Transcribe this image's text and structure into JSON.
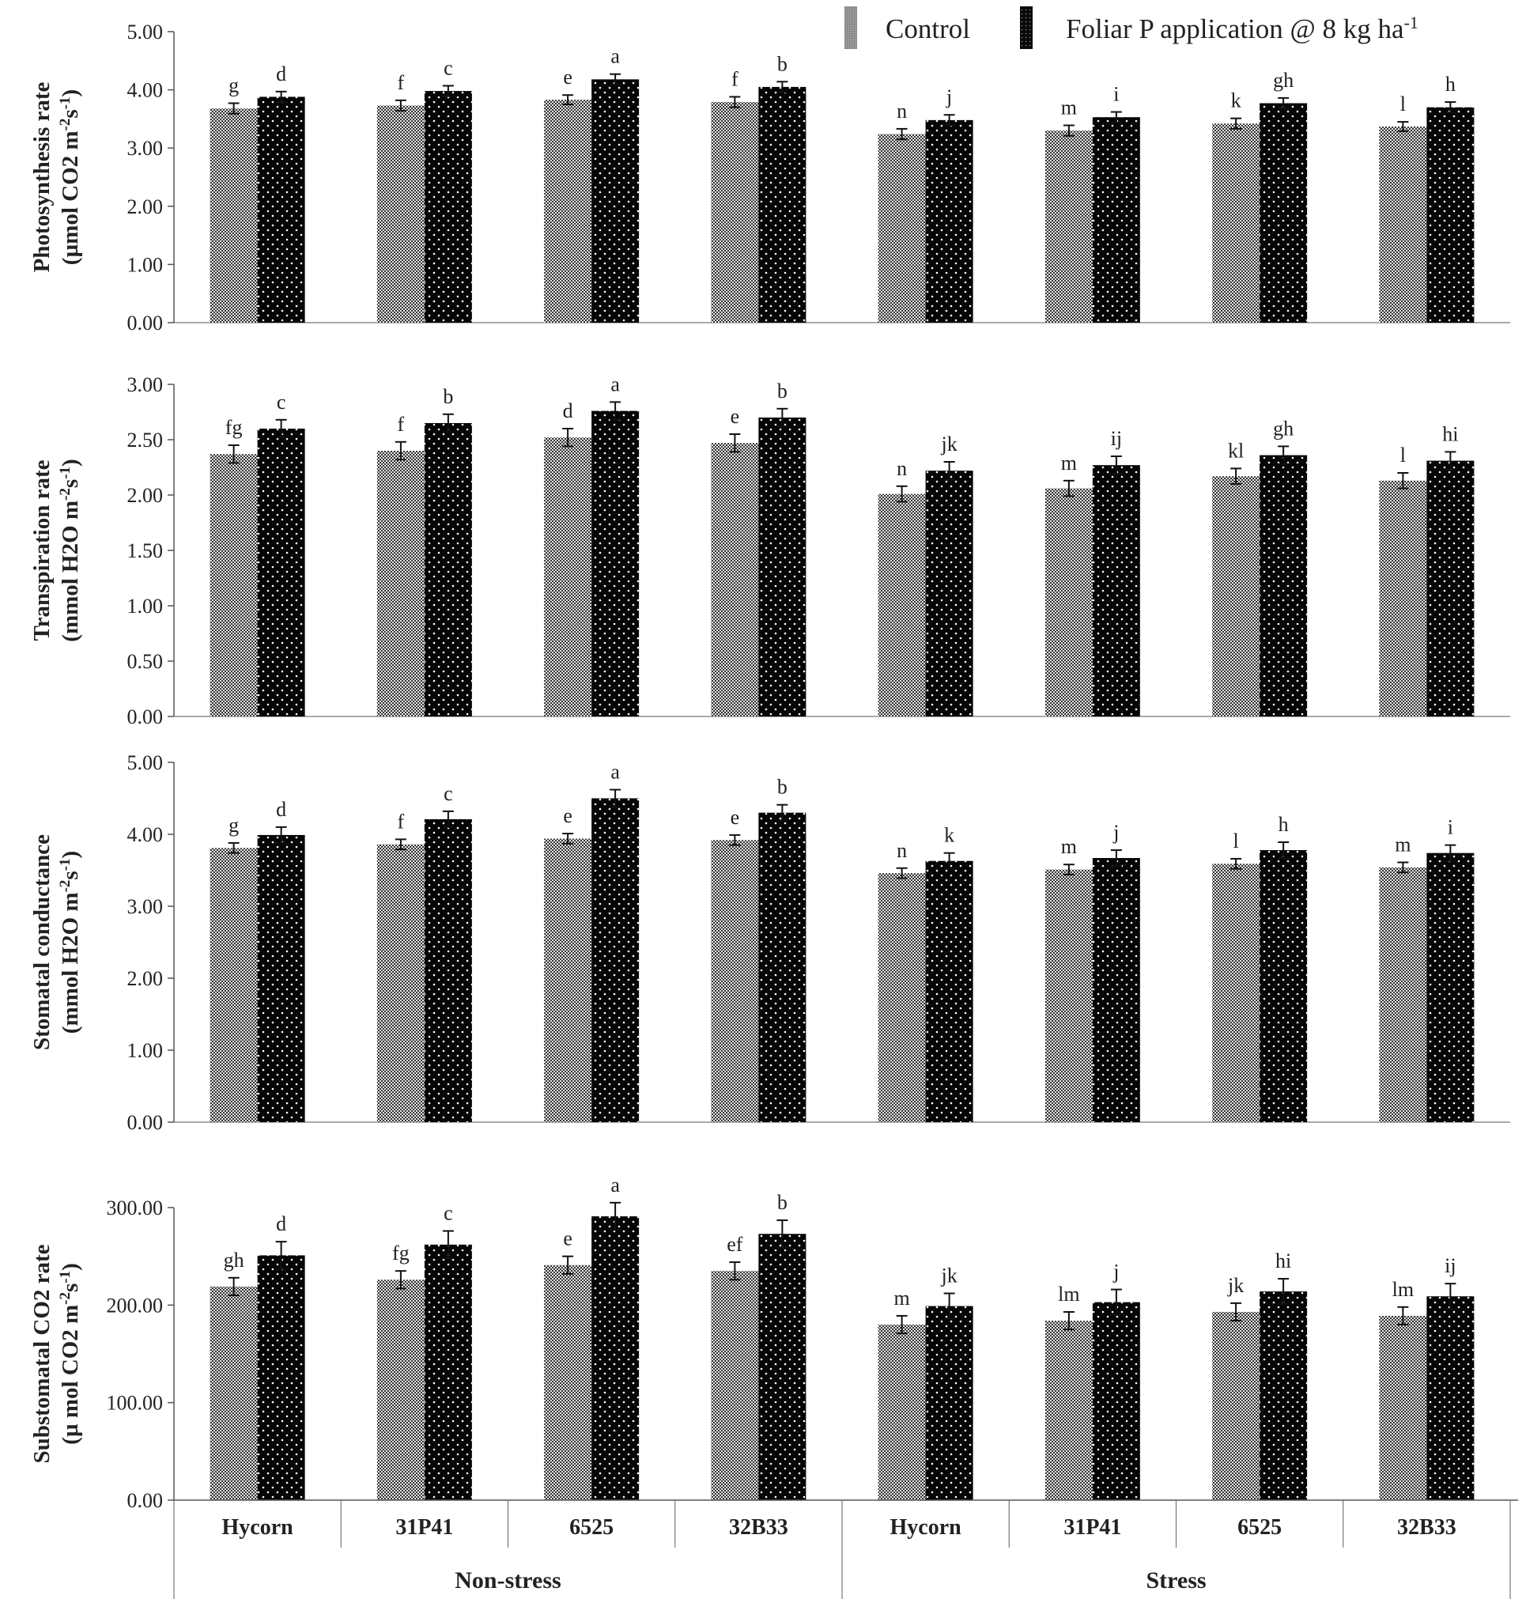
{
  "chart_data": {
    "type": "bar",
    "legend": {
      "position": "top-right",
      "entries": [
        {
          "name": "Control",
          "label_html": "Control",
          "pattern": "checker"
        },
        {
          "name": "Foliar P application @ 8 kg ha-1",
          "label_html": "Foliar P application @ 8 kg ha",
          "sup": "-1",
          "pattern": "dots"
        }
      ]
    },
    "categories": [
      "Hycorn",
      "31P41",
      "6525",
      "32B33",
      "Hycorn",
      "31P41",
      "6525",
      "32B33"
    ],
    "groups": [
      {
        "name": "Non-stress",
        "categories": [
          "Hycorn",
          "31P41",
          "6525",
          "32B33"
        ]
      },
      {
        "name": "Stress",
        "categories": [
          "Hycorn",
          "31P41",
          "6525",
          "32B33"
        ]
      }
    ],
    "panels": [
      {
        "id": "photosynthesis",
        "ylabel_line1": "Photosynthesis rate",
        "ylabel_line2_parts": [
          [
            "(µmol CO2 m",
            ""
          ],
          [
            "-2",
            "sup"
          ],
          [
            "s",
            ""
          ],
          [
            "-1",
            "sup"
          ],
          [
            ")",
            ""
          ]
        ],
        "ylim": [
          0,
          5
        ],
        "ticks": [
          "0.00",
          "1.00",
          "2.00",
          "3.00",
          "4.00",
          "5.00"
        ],
        "tick_values": [
          0,
          1,
          2,
          3,
          4,
          5
        ],
        "series": [
          {
            "name": "Control",
            "values": [
              3.68,
              3.73,
              3.83,
              3.79,
              3.24,
              3.3,
              3.42,
              3.37
            ],
            "errors": [
              0.09,
              0.09,
              0.08,
              0.09,
              0.09,
              0.09,
              0.09,
              0.08
            ],
            "letters": [
              "g",
              "f",
              "e",
              "f",
              "n",
              "m",
              "k",
              "l"
            ]
          },
          {
            "name": "Foliar P application @ 8 kg ha-1",
            "values": [
              3.88,
              3.98,
              4.18,
              4.05,
              3.48,
              3.53,
              3.77,
              3.7
            ],
            "errors": [
              0.09,
              0.09,
              0.09,
              0.09,
              0.09,
              0.09,
              0.09,
              0.09
            ],
            "letters": [
              "d",
              "c",
              "a",
              "b",
              "j",
              "i",
              "gh",
              "h"
            ]
          }
        ]
      },
      {
        "id": "transpiration",
        "ylabel_line1": "Transpiration rate",
        "ylabel_line2_parts": [
          [
            "(mmol H2O m",
            ""
          ],
          [
            "-2",
            "sup"
          ],
          [
            "s",
            ""
          ],
          [
            "-1",
            "sup"
          ],
          [
            ")",
            ""
          ]
        ],
        "ylim": [
          0,
          3
        ],
        "ticks": [
          "0.00",
          "0.50",
          "1.00",
          "1.50",
          "2.00",
          "2.50",
          "3.00"
        ],
        "tick_values": [
          0,
          0.5,
          1,
          1.5,
          2,
          2.5,
          3
        ],
        "series": [
          {
            "name": "Control",
            "values": [
              2.37,
              2.4,
              2.52,
              2.47,
              2.01,
              2.06,
              2.17,
              2.13
            ],
            "errors": [
              0.08,
              0.08,
              0.08,
              0.08,
              0.07,
              0.07,
              0.07,
              0.07
            ],
            "letters": [
              "fg",
              "f",
              "d",
              "e",
              "n",
              "m",
              "kl",
              "l"
            ]
          },
          {
            "name": "Foliar P application @ 8 kg ha-1",
            "values": [
              2.6,
              2.65,
              2.76,
              2.7,
              2.22,
              2.27,
              2.36,
              2.31
            ],
            "errors": [
              0.08,
              0.08,
              0.08,
              0.08,
              0.08,
              0.08,
              0.08,
              0.08
            ],
            "letters": [
              "c",
              "b",
              "a",
              "b",
              "jk",
              "ij",
              "gh",
              "hi"
            ]
          }
        ]
      },
      {
        "id": "stomatal",
        "ylabel_line1": "Stomatal conductance",
        "ylabel_line2_parts": [
          [
            "(mmol H2O m",
            ""
          ],
          [
            "-2",
            "sup"
          ],
          [
            "s",
            ""
          ],
          [
            "-1",
            "sup"
          ],
          [
            ")",
            ""
          ]
        ],
        "ylim": [
          0,
          5
        ],
        "ticks": [
          "0.00",
          "1.00",
          "2.00",
          "3.00",
          "4.00",
          "5.00"
        ],
        "tick_values": [
          0,
          1,
          2,
          3,
          4,
          5
        ],
        "series": [
          {
            "name": "Control",
            "values": [
              3.81,
              3.86,
              3.94,
              3.92,
              3.46,
              3.51,
              3.59,
              3.54
            ],
            "errors": [
              0.07,
              0.07,
              0.07,
              0.07,
              0.07,
              0.07,
              0.07,
              0.07
            ],
            "letters": [
              "g",
              "f",
              "e",
              "e",
              "n",
              "m",
              "l",
              "m"
            ]
          },
          {
            "name": "Foliar P application @ 8 kg ha-1",
            "values": [
              3.99,
              4.21,
              4.5,
              4.3,
              3.63,
              3.67,
              3.78,
              3.74
            ],
            "errors": [
              0.11,
              0.11,
              0.12,
              0.11,
              0.11,
              0.11,
              0.11,
              0.11
            ],
            "letters": [
              "d",
              "c",
              "a",
              "b",
              "k",
              "j",
              "h",
              "i"
            ]
          }
        ]
      },
      {
        "id": "substomatal",
        "ylabel_line1": "Substomatal CO2 rate",
        "ylabel_line2_parts": [
          [
            "(µ mol CO2 m",
            ""
          ],
          [
            "-2",
            "sup"
          ],
          [
            "s",
            ""
          ],
          [
            "-1",
            "sup"
          ],
          [
            ")",
            ""
          ]
        ],
        "ylim": [
          0,
          300
        ],
        "ticks": [
          "0.00",
          "100.00",
          "200.00",
          "300.00"
        ],
        "tick_values": [
          0,
          100,
          200,
          300
        ],
        "series": [
          {
            "name": "Control",
            "values": [
              219,
              226,
              241,
              235,
              180,
              184,
              193,
              189
            ],
            "errors": [
              9,
              9,
              9,
              9,
              9,
              9,
              9,
              9
            ],
            "letters": [
              "gh",
              "fg",
              "e",
              "ef",
              "m",
              "lm",
              "jk",
              "lm"
            ]
          },
          {
            "name": "Foliar P application @ 8 kg ha-1",
            "values": [
              251,
              262,
              291,
              273,
              199,
              203,
              214,
              209
            ],
            "errors": [
              14,
              14,
              14,
              14,
              13,
              13,
              13,
              13
            ],
            "letters": [
              "d",
              "c",
              "a",
              "b",
              "jk",
              "j",
              "hi",
              "ij"
            ]
          }
        ]
      }
    ]
  }
}
